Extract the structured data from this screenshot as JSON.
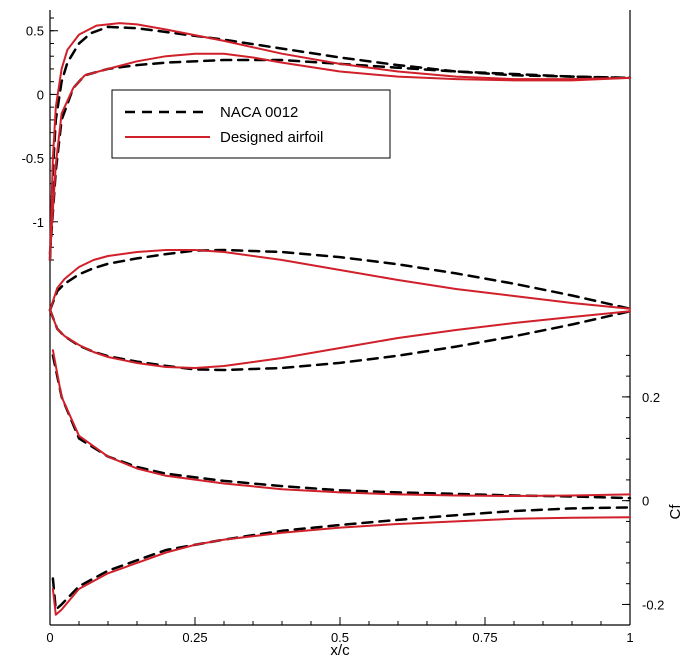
{
  "chart_data": {
    "type": "line",
    "xlabel": "x/c",
    "x_ticks": [
      "0",
      "0.25",
      "0.5",
      "0.75",
      "1"
    ],
    "colors": {
      "naca": "#000000",
      "designed": "#d0202a"
    },
    "legend": {
      "placement": "top-left",
      "entries": [
        {
          "label": "NACA 0012",
          "style": "dashed",
          "color": "#000000"
        },
        {
          "label": "Designed airfoil",
          "style": "solid",
          "color": "#d0202a"
        }
      ]
    },
    "panels": [
      {
        "id": "cp",
        "y_ticks": [
          "0.5",
          "0",
          "-0.5",
          "-1"
        ],
        "ylim": [
          -1.3,
          0.6
        ],
        "y_axis": "left",
        "series": [
          {
            "label": "NACA 0012",
            "curves": [
              [
                [
                  0,
                  -1.3
                ],
                [
                  0.005,
                  -0.6
                ],
                [
                  0.01,
                  -0.2
                ],
                [
                  0.02,
                  0.1
                ],
                [
                  0.03,
                  0.25
                ],
                [
                  0.05,
                  0.4
                ],
                [
                  0.07,
                  0.48
                ],
                [
                  0.1,
                  0.53
                ],
                [
                  0.15,
                  0.52
                ],
                [
                  0.2,
                  0.49
                ],
                [
                  0.3,
                  0.43
                ],
                [
                  0.4,
                  0.36
                ],
                [
                  0.5,
                  0.29
                ],
                [
                  0.6,
                  0.23
                ],
                [
                  0.7,
                  0.18
                ],
                [
                  0.8,
                  0.15
                ],
                [
                  0.9,
                  0.14
                ],
                [
                  1.0,
                  0.13
                ]
              ],
              [
                [
                  0,
                  -1.25
                ],
                [
                  0.01,
                  -0.6
                ],
                [
                  0.02,
                  -0.2
                ],
                [
                  0.04,
                  0.05
                ],
                [
                  0.06,
                  0.15
                ],
                [
                  0.1,
                  0.2
                ],
                [
                  0.15,
                  0.23
                ],
                [
                  0.2,
                  0.25
                ],
                [
                  0.3,
                  0.27
                ],
                [
                  0.4,
                  0.27
                ],
                [
                  0.5,
                  0.24
                ],
                [
                  0.6,
                  0.21
                ],
                [
                  0.7,
                  0.18
                ],
                [
                  0.8,
                  0.16
                ],
                [
                  0.9,
                  0.14
                ],
                [
                  1.0,
                  0.13
                ]
              ]
            ]
          },
          {
            "label": "Designed airfoil",
            "curves": [
              [
                [
                  0,
                  -1.3
                ],
                [
                  0.005,
                  -0.5
                ],
                [
                  0.01,
                  -0.1
                ],
                [
                  0.02,
                  0.2
                ],
                [
                  0.03,
                  0.35
                ],
                [
                  0.05,
                  0.47
                ],
                [
                  0.08,
                  0.54
                ],
                [
                  0.12,
                  0.56
                ],
                [
                  0.15,
                  0.55
                ],
                [
                  0.2,
                  0.51
                ],
                [
                  0.3,
                  0.42
                ],
                [
                  0.4,
                  0.32
                ],
                [
                  0.5,
                  0.24
                ],
                [
                  0.6,
                  0.18
                ],
                [
                  0.7,
                  0.14
                ],
                [
                  0.8,
                  0.12
                ],
                [
                  0.9,
                  0.12
                ],
                [
                  1.0,
                  0.13
                ]
              ],
              [
                [
                  0,
                  -1.25
                ],
                [
                  0.01,
                  -0.55
                ],
                [
                  0.02,
                  -0.15
                ],
                [
                  0.04,
                  0.05
                ],
                [
                  0.06,
                  0.15
                ],
                [
                  0.1,
                  0.2
                ],
                [
                  0.15,
                  0.26
                ],
                [
                  0.2,
                  0.3
                ],
                [
                  0.25,
                  0.32
                ],
                [
                  0.3,
                  0.32
                ],
                [
                  0.35,
                  0.29
                ],
                [
                  0.4,
                  0.25
                ],
                [
                  0.5,
                  0.18
                ],
                [
                  0.6,
                  0.14
                ],
                [
                  0.7,
                  0.12
                ],
                [
                  0.8,
                  0.11
                ],
                [
                  0.9,
                  0.11
                ],
                [
                  1.0,
                  0.13
                ]
              ]
            ]
          }
        ]
      },
      {
        "id": "shape",
        "y_ticks": [],
        "ylim": [
          -0.08,
          0.08
        ],
        "series": [
          {
            "label": "NACA 0012",
            "curves": [
              [
                [
                  0,
                  0
                ],
                [
                  0.0125,
                  0.0189
                ],
                [
                  0.025,
                  0.0262
                ],
                [
                  0.05,
                  0.0356
                ],
                [
                  0.075,
                  0.0418
                ],
                [
                  0.1,
                  0.0462
                ],
                [
                  0.15,
                  0.0516
                ],
                [
                  0.2,
                  0.0559
                ],
                [
                  0.25,
                  0.0594
                ],
                [
                  0.3,
                  0.06
                ],
                [
                  0.4,
                  0.058
                ],
                [
                  0.5,
                  0.0529
                ],
                [
                  0.6,
                  0.0457
                ],
                [
                  0.7,
                  0.0366
                ],
                [
                  0.8,
                  0.0263
                ],
                [
                  0.9,
                  0.0145
                ],
                [
                  1.0,
                  0.0013
                ]
              ],
              [
                [
                  0,
                  0
                ],
                [
                  0.0125,
                  -0.0189
                ],
                [
                  0.025,
                  -0.0262
                ],
                [
                  0.05,
                  -0.0356
                ],
                [
                  0.075,
                  -0.0418
                ],
                [
                  0.1,
                  -0.0462
                ],
                [
                  0.15,
                  -0.0516
                ],
                [
                  0.2,
                  -0.0559
                ],
                [
                  0.25,
                  -0.0594
                ],
                [
                  0.3,
                  -0.06
                ],
                [
                  0.4,
                  -0.058
                ],
                [
                  0.5,
                  -0.0529
                ],
                [
                  0.6,
                  -0.0457
                ],
                [
                  0.7,
                  -0.0366
                ],
                [
                  0.8,
                  -0.0263
                ],
                [
                  0.9,
                  -0.0145
                ],
                [
                  1.0,
                  -0.0013
                ]
              ]
            ]
          },
          {
            "label": "Designed airfoil",
            "curves": [
              [
                [
                  0,
                  0
                ],
                [
                  0.0125,
                  0.022
                ],
                [
                  0.025,
                  0.031
                ],
                [
                  0.05,
                  0.043
                ],
                [
                  0.075,
                  0.05
                ],
                [
                  0.1,
                  0.054
                ],
                [
                  0.15,
                  0.058
                ],
                [
                  0.2,
                  0.06
                ],
                [
                  0.25,
                  0.06
                ],
                [
                  0.3,
                  0.058
                ],
                [
                  0.4,
                  0.05
                ],
                [
                  0.5,
                  0.04
                ],
                [
                  0.6,
                  0.03
                ],
                [
                  0.7,
                  0.021
                ],
                [
                  0.8,
                  0.014
                ],
                [
                  0.9,
                  0.007
                ],
                [
                  1.0,
                  0.0013
                ]
              ],
              [
                [
                  0,
                  0
                ],
                [
                  0.0125,
                  -0.019
                ],
                [
                  0.025,
                  -0.026
                ],
                [
                  0.05,
                  -0.035
                ],
                [
                  0.075,
                  -0.042
                ],
                [
                  0.1,
                  -0.047
                ],
                [
                  0.15,
                  -0.053
                ],
                [
                  0.2,
                  -0.057
                ],
                [
                  0.25,
                  -0.058
                ],
                [
                  0.3,
                  -0.056
                ],
                [
                  0.4,
                  -0.048
                ],
                [
                  0.5,
                  -0.038
                ],
                [
                  0.6,
                  -0.028
                ],
                [
                  0.7,
                  -0.02
                ],
                [
                  0.8,
                  -0.013
                ],
                [
                  0.9,
                  -0.007
                ],
                [
                  1.0,
                  -0.0013
                ]
              ]
            ]
          }
        ]
      },
      {
        "id": "cf",
        "ylabel": "Cf",
        "y_ticks": [
          "0.2",
          "0",
          "-0.2"
        ],
        "ylim": [
          -0.23,
          0.3
        ],
        "y_axis": "right",
        "series": [
          {
            "label": "NACA 0012",
            "curves": [
              [
                [
                  0.005,
                  0.28
                ],
                [
                  0.02,
                  0.2
                ],
                [
                  0.05,
                  0.12
                ],
                [
                  0.1,
                  0.085
                ],
                [
                  0.15,
                  0.065
                ],
                [
                  0.2,
                  0.052
                ],
                [
                  0.3,
                  0.038
                ],
                [
                  0.4,
                  0.028
                ],
                [
                  0.5,
                  0.02
                ],
                [
                  0.6,
                  0.016
                ],
                [
                  0.7,
                  0.013
                ],
                [
                  0.8,
                  0.01
                ],
                [
                  0.9,
                  0.008
                ],
                [
                  1.0,
                  0.005
                ]
              ],
              [
                [
                  0.005,
                  -0.15
                ],
                [
                  0.01,
                  -0.21
                ],
                [
                  0.02,
                  -0.2
                ],
                [
                  0.05,
                  -0.165
                ],
                [
                  0.1,
                  -0.135
                ],
                [
                  0.15,
                  -0.115
                ],
                [
                  0.2,
                  -0.095
                ],
                [
                  0.3,
                  -0.075
                ],
                [
                  0.4,
                  -0.058
                ],
                [
                  0.5,
                  -0.047
                ],
                [
                  0.6,
                  -0.037
                ],
                [
                  0.7,
                  -0.028
                ],
                [
                  0.8,
                  -0.02
                ],
                [
                  0.9,
                  -0.015
                ],
                [
                  1.0,
                  -0.013
                ]
              ]
            ]
          },
          {
            "label": "Designed airfoil",
            "curves": [
              [
                [
                  0.005,
                  0.29
                ],
                [
                  0.02,
                  0.2
                ],
                [
                  0.05,
                  0.125
                ],
                [
                  0.1,
                  0.085
                ],
                [
                  0.15,
                  0.062
                ],
                [
                  0.2,
                  0.048
                ],
                [
                  0.3,
                  0.033
                ],
                [
                  0.4,
                  0.022
                ],
                [
                  0.5,
                  0.016
                ],
                [
                  0.6,
                  0.012
                ],
                [
                  0.7,
                  0.01
                ],
                [
                  0.8,
                  0.009
                ],
                [
                  0.9,
                  0.01
                ],
                [
                  1.0,
                  0.012
                ]
              ],
              [
                [
                  0.005,
                  -0.17
                ],
                [
                  0.01,
                  -0.22
                ],
                [
                  0.02,
                  -0.21
                ],
                [
                  0.05,
                  -0.17
                ],
                [
                  0.1,
                  -0.14
                ],
                [
                  0.15,
                  -0.12
                ],
                [
                  0.2,
                  -0.1
                ],
                [
                  0.25,
                  -0.085
                ],
                [
                  0.3,
                  -0.075
                ],
                [
                  0.4,
                  -0.062
                ],
                [
                  0.5,
                  -0.052
                ],
                [
                  0.6,
                  -0.045
                ],
                [
                  0.7,
                  -0.04
                ],
                [
                  0.8,
                  -0.035
                ],
                [
                  0.9,
                  -0.033
                ],
                [
                  1.0,
                  -0.032
                ]
              ]
            ]
          }
        ]
      }
    ]
  }
}
